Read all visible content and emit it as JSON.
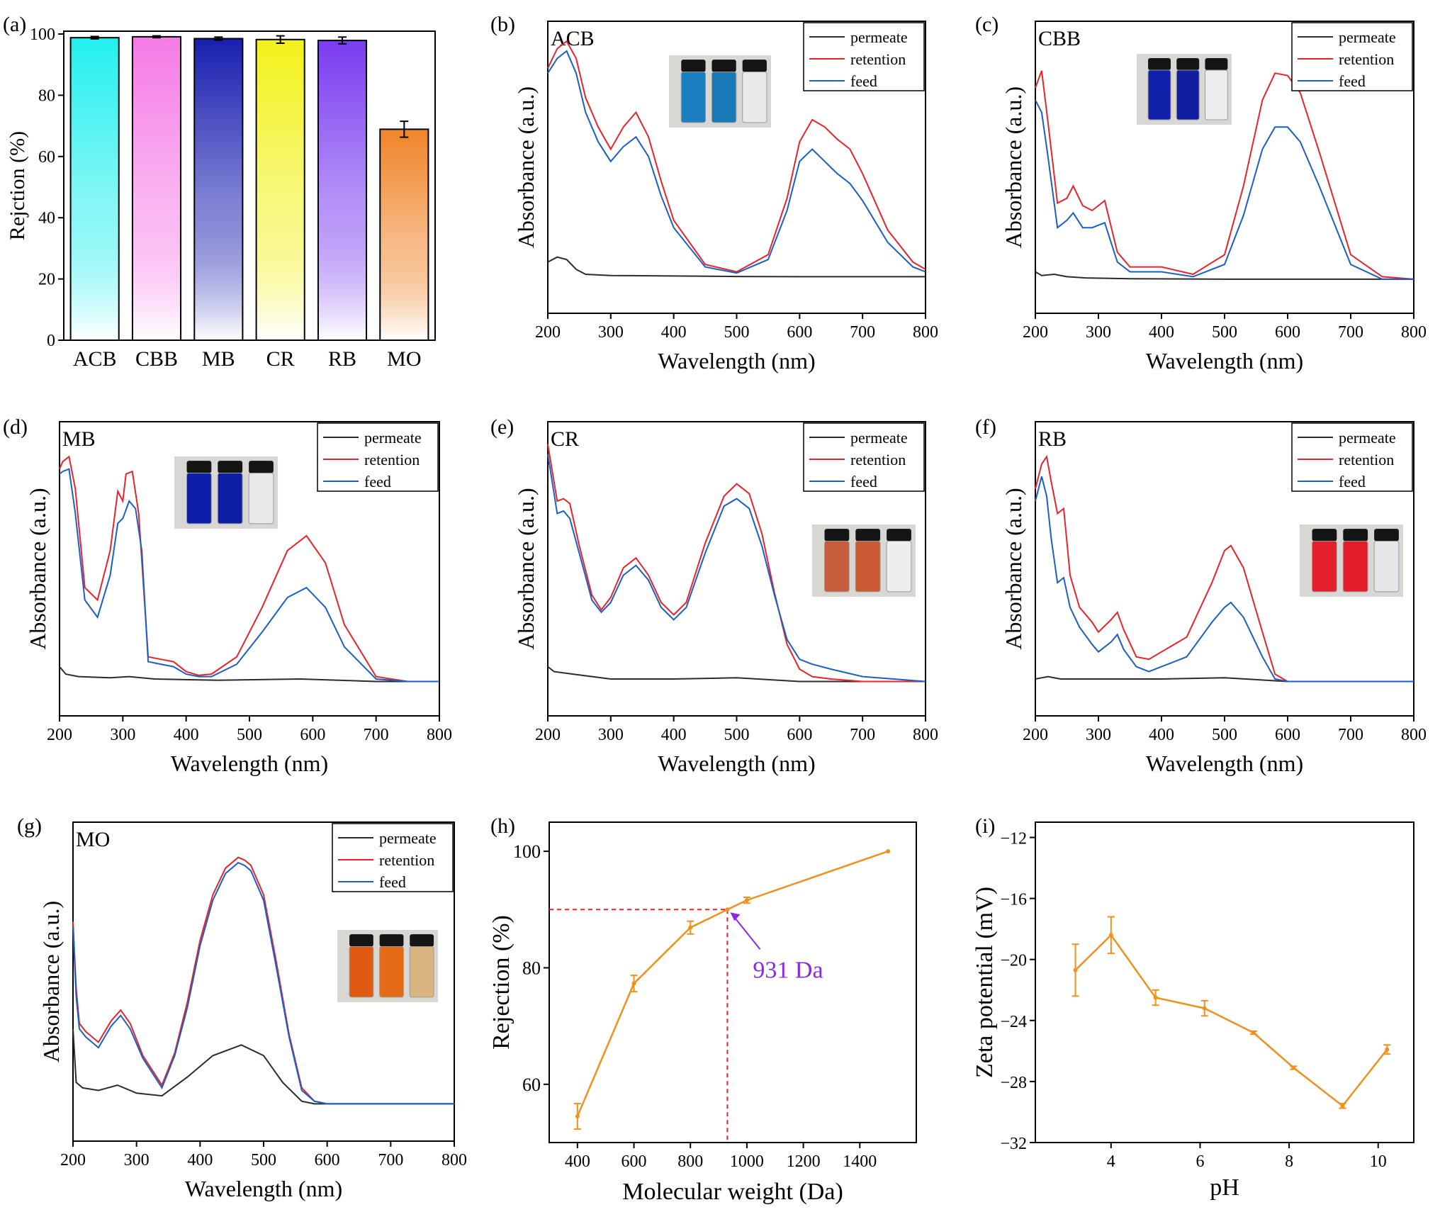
{
  "colors": {
    "permeate": "#2b2b2b",
    "retention": "#e8232b",
    "feed": "#1a5fc4",
    "orange": "#f0901e",
    "guide": "#e8232b",
    "annotation": "#8a2be2",
    "bars": [
      "#22f0ee",
      "#f57ae6",
      "#1a1fb0",
      "#f2f21a",
      "#7a3cf0",
      "#f08428"
    ]
  },
  "chart_data": [
    {
      "panel": "(a)",
      "type": "bar",
      "categories": [
        "ACB",
        "CBB",
        "MB",
        "CR",
        "RB",
        "MO"
      ],
      "values": [
        98.8,
        99.1,
        98.5,
        98.2,
        97.9,
        68.9
      ],
      "errors": [
        0.4,
        0.3,
        0.5,
        1.2,
        1.1,
        2.6
      ],
      "ylabel": "Rejction (%)",
      "xlabel": "",
      "ylim": [
        0,
        100
      ],
      "yticks": [
        0,
        20,
        40,
        60,
        80,
        100
      ]
    },
    {
      "panel": "(b)",
      "type": "line",
      "label": "ACB",
      "xlabel": "Wavelength  (nm)",
      "ylabel": "Absorbance  (a.u.)",
      "xlim": [
        200,
        800
      ],
      "ylim": [
        0,
        1
      ],
      "xticks": [
        200,
        300,
        400,
        500,
        600,
        700,
        800
      ],
      "legend": "top-right",
      "series": [
        {
          "name": "permeate",
          "x": [
            200,
            215,
            230,
            245,
            260,
            300,
            400,
            500,
            600,
            700,
            800
          ],
          "values": [
            0.09,
            0.11,
            0.1,
            0.06,
            0.04,
            0.035,
            0.033,
            0.031,
            0.03,
            0.03,
            0.03
          ]
        },
        {
          "name": "retention",
          "x": [
            200,
            215,
            230,
            245,
            260,
            280,
            300,
            320,
            340,
            360,
            380,
            400,
            450,
            500,
            550,
            580,
            600,
            620,
            640,
            660,
            680,
            700,
            740,
            780,
            800
          ],
          "values": [
            0.88,
            0.96,
            0.99,
            0.92,
            0.76,
            0.64,
            0.55,
            0.64,
            0.7,
            0.6,
            0.42,
            0.26,
            0.08,
            0.05,
            0.12,
            0.35,
            0.58,
            0.67,
            0.64,
            0.59,
            0.55,
            0.45,
            0.22,
            0.09,
            0.06
          ]
        },
        {
          "name": "feed",
          "x": [
            200,
            215,
            230,
            245,
            260,
            280,
            300,
            320,
            340,
            360,
            380,
            400,
            450,
            500,
            550,
            580,
            600,
            620,
            640,
            660,
            680,
            700,
            740,
            780,
            800
          ],
          "values": [
            0.86,
            0.92,
            0.95,
            0.86,
            0.7,
            0.58,
            0.5,
            0.56,
            0.6,
            0.52,
            0.36,
            0.23,
            0.07,
            0.045,
            0.1,
            0.3,
            0.5,
            0.55,
            0.5,
            0.45,
            0.41,
            0.34,
            0.17,
            0.07,
            0.05
          ]
        }
      ]
    },
    {
      "panel": "(c)",
      "type": "line",
      "label": "CBB",
      "xlabel": "Wavelength  (nm)",
      "ylabel": "Absorbance  (a.u.)",
      "xlim": [
        200,
        800
      ],
      "ylim": [
        0,
        1
      ],
      "xticks": [
        200,
        300,
        400,
        500,
        600,
        700,
        800
      ],
      "legend": "top-right",
      "series": [
        {
          "name": "permeate",
          "x": [
            200,
            210,
            230,
            250,
            280,
            350,
            500,
            650,
            800
          ],
          "values": [
            0.05,
            0.035,
            0.04,
            0.03,
            0.025,
            0.022,
            0.02,
            0.02,
            0.02
          ]
        },
        {
          "name": "retention",
          "x": [
            200,
            210,
            220,
            235,
            250,
            260,
            275,
            290,
            310,
            330,
            350,
            400,
            450,
            500,
            530,
            560,
            580,
            600,
            620,
            650,
            700,
            750,
            800
          ],
          "values": [
            0.8,
            0.87,
            0.66,
            0.33,
            0.35,
            0.4,
            0.32,
            0.3,
            0.34,
            0.13,
            0.07,
            0.07,
            0.04,
            0.12,
            0.4,
            0.75,
            0.86,
            0.85,
            0.78,
            0.54,
            0.12,
            0.03,
            0.02
          ]
        },
        {
          "name": "feed",
          "x": [
            200,
            210,
            220,
            235,
            250,
            260,
            275,
            290,
            310,
            330,
            350,
            400,
            450,
            500,
            530,
            560,
            580,
            600,
            620,
            650,
            700,
            750,
            800
          ],
          "values": [
            0.75,
            0.7,
            0.52,
            0.23,
            0.26,
            0.29,
            0.23,
            0.23,
            0.25,
            0.09,
            0.05,
            0.05,
            0.03,
            0.08,
            0.28,
            0.55,
            0.64,
            0.64,
            0.58,
            0.4,
            0.08,
            0.02,
            0.02
          ]
        }
      ]
    },
    {
      "panel": "(d)",
      "type": "line",
      "label": "MB",
      "xlabel": "Wavelength  (nm)",
      "ylabel": "Absorbance  (a.u.)",
      "xlim": [
        200,
        800
      ],
      "ylim": [
        0,
        1
      ],
      "xticks": [
        200,
        300,
        400,
        500,
        600,
        700,
        800
      ],
      "legend": "top-right",
      "series": [
        {
          "name": "permeate",
          "x": [
            200,
            210,
            230,
            280,
            310,
            350,
            450,
            580,
            700,
            800
          ],
          "values": [
            0.08,
            0.05,
            0.04,
            0.035,
            0.04,
            0.03,
            0.025,
            0.03,
            0.02,
            0.02
          ]
        },
        {
          "name": "retention",
          "x": [
            200,
            205,
            215,
            225,
            240,
            260,
            280,
            292,
            300,
            305,
            315,
            325,
            340,
            360,
            380,
            400,
            420,
            440,
            480,
            520,
            560,
            590,
            620,
            650,
            700,
            750,
            800
          ],
          "values": [
            0.88,
            0.91,
            0.93,
            0.8,
            0.4,
            0.35,
            0.55,
            0.79,
            0.75,
            0.86,
            0.87,
            0.7,
            0.12,
            0.11,
            0.1,
            0.06,
            0.045,
            0.05,
            0.12,
            0.32,
            0.55,
            0.61,
            0.5,
            0.25,
            0.04,
            0.02,
            0.02
          ]
        },
        {
          "name": "feed",
          "x": [
            200,
            205,
            215,
            225,
            240,
            260,
            280,
            292,
            300,
            310,
            320,
            330,
            340,
            360,
            380,
            400,
            420,
            440,
            480,
            520,
            560,
            590,
            620,
            650,
            700,
            750,
            800
          ],
          "values": [
            0.86,
            0.87,
            0.88,
            0.7,
            0.35,
            0.28,
            0.45,
            0.66,
            0.68,
            0.75,
            0.72,
            0.55,
            0.1,
            0.09,
            0.08,
            0.05,
            0.04,
            0.04,
            0.09,
            0.22,
            0.36,
            0.4,
            0.32,
            0.16,
            0.03,
            0.02,
            0.02
          ]
        }
      ]
    },
    {
      "panel": "(e)",
      "type": "line",
      "label": "CR",
      "xlabel": "Wavelength  (nm)",
      "ylabel": "Absorbance  (a.u.)",
      "xlim": [
        200,
        800
      ],
      "ylim": [
        0,
        1
      ],
      "xticks": [
        200,
        300,
        400,
        500,
        600,
        700,
        800
      ],
      "legend": "top-right",
      "series": [
        {
          "name": "permeate",
          "x": [
            200,
            210,
            240,
            300,
            400,
            500,
            600,
            700,
            800
          ],
          "values": [
            0.08,
            0.06,
            0.05,
            0.03,
            0.03,
            0.035,
            0.02,
            0.02,
            0.02
          ]
        },
        {
          "name": "retention",
          "x": [
            200,
            215,
            225,
            235,
            250,
            270,
            285,
            300,
            320,
            340,
            360,
            380,
            400,
            420,
            450,
            480,
            500,
            520,
            540,
            560,
            580,
            600,
            620,
            650,
            700,
            800
          ],
          "values": [
            0.98,
            0.75,
            0.76,
            0.74,
            0.57,
            0.37,
            0.31,
            0.36,
            0.48,
            0.52,
            0.45,
            0.34,
            0.29,
            0.34,
            0.58,
            0.77,
            0.82,
            0.78,
            0.62,
            0.38,
            0.17,
            0.07,
            0.04,
            0.03,
            0.02,
            0.02
          ]
        },
        {
          "name": "feed",
          "x": [
            200,
            215,
            225,
            235,
            250,
            270,
            285,
            300,
            320,
            340,
            360,
            380,
            400,
            420,
            450,
            480,
            500,
            520,
            540,
            560,
            580,
            600,
            620,
            650,
            700,
            800
          ],
          "values": [
            0.94,
            0.7,
            0.71,
            0.68,
            0.54,
            0.35,
            0.3,
            0.34,
            0.45,
            0.49,
            0.43,
            0.32,
            0.27,
            0.32,
            0.54,
            0.73,
            0.76,
            0.72,
            0.57,
            0.37,
            0.19,
            0.11,
            0.09,
            0.07,
            0.04,
            0.02
          ]
        }
      ]
    },
    {
      "panel": "(f)",
      "type": "line",
      "label": "RB",
      "xlabel": "Wavelength  (nm)",
      "ylabel": "Absorbance  (a.u.)",
      "xlim": [
        200,
        800
      ],
      "ylim": [
        0,
        1
      ],
      "xticks": [
        200,
        300,
        400,
        500,
        600,
        700,
        800
      ],
      "legend": "top-right",
      "series": [
        {
          "name": "permeate",
          "x": [
            200,
            210,
            220,
            240,
            300,
            400,
            500,
            600,
            700,
            800
          ],
          "values": [
            0.03,
            0.035,
            0.04,
            0.03,
            0.03,
            0.03,
            0.035,
            0.02,
            0.02,
            0.02
          ]
        },
        {
          "name": "retention",
          "x": [
            200,
            210,
            218,
            225,
            235,
            245,
            255,
            270,
            290,
            300,
            320,
            330,
            340,
            360,
            380,
            400,
            440,
            480,
            500,
            510,
            530,
            560,
            580,
            600,
            650,
            800
          ],
          "values": [
            0.8,
            0.9,
            0.93,
            0.83,
            0.7,
            0.72,
            0.45,
            0.32,
            0.26,
            0.22,
            0.27,
            0.3,
            0.23,
            0.12,
            0.11,
            0.14,
            0.2,
            0.42,
            0.55,
            0.57,
            0.48,
            0.22,
            0.05,
            0.02,
            0.02,
            0.02
          ]
        },
        {
          "name": "feed",
          "x": [
            200,
            210,
            218,
            225,
            235,
            245,
            255,
            270,
            290,
            300,
            320,
            330,
            340,
            360,
            380,
            400,
            440,
            480,
            500,
            510,
            530,
            560,
            580,
            600,
            650,
            800
          ],
          "values": [
            0.75,
            0.85,
            0.77,
            0.6,
            0.42,
            0.44,
            0.32,
            0.24,
            0.17,
            0.14,
            0.18,
            0.21,
            0.15,
            0.08,
            0.06,
            0.08,
            0.12,
            0.26,
            0.32,
            0.34,
            0.28,
            0.12,
            0.03,
            0.02,
            0.02,
            0.02
          ]
        }
      ]
    },
    {
      "panel": "(g)",
      "type": "line",
      "label": "MO",
      "xlabel": "Wavelength  (nm)",
      "ylabel": "Absorbance  (a.u.)",
      "xlim": [
        200,
        800
      ],
      "ylim": [
        0,
        1
      ],
      "xticks": [
        200,
        300,
        400,
        500,
        600,
        700,
        800
      ],
      "legend": "top-right",
      "series": [
        {
          "name": "permeate",
          "x": [
            200,
            205,
            215,
            240,
            270,
            300,
            340,
            380,
            420,
            465,
            500,
            530,
            560,
            580,
            600,
            800
          ],
          "values": [
            0.3,
            0.1,
            0.08,
            0.07,
            0.09,
            0.06,
            0.05,
            0.12,
            0.2,
            0.24,
            0.2,
            0.1,
            0.03,
            0.02,
            0.02,
            0.02
          ]
        },
        {
          "name": "retention",
          "x": [
            200,
            205,
            210,
            220,
            240,
            260,
            275,
            290,
            310,
            340,
            360,
            380,
            400,
            420,
            440,
            460,
            470,
            480,
            500,
            520,
            540,
            560,
            580,
            600,
            800
          ],
          "values": [
            0.7,
            0.45,
            0.32,
            0.29,
            0.25,
            0.33,
            0.37,
            0.32,
            0.2,
            0.09,
            0.21,
            0.4,
            0.63,
            0.8,
            0.9,
            0.94,
            0.93,
            0.91,
            0.8,
            0.55,
            0.28,
            0.08,
            0.03,
            0.02,
            0.02
          ]
        },
        {
          "name": "feed",
          "x": [
            200,
            205,
            210,
            220,
            240,
            260,
            275,
            290,
            310,
            340,
            360,
            380,
            400,
            420,
            440,
            460,
            470,
            480,
            500,
            520,
            540,
            560,
            580,
            600,
            800
          ],
          "values": [
            0.68,
            0.42,
            0.3,
            0.27,
            0.23,
            0.31,
            0.35,
            0.3,
            0.19,
            0.08,
            0.2,
            0.38,
            0.61,
            0.78,
            0.88,
            0.92,
            0.91,
            0.89,
            0.78,
            0.53,
            0.27,
            0.07,
            0.03,
            0.02,
            0.02
          ]
        }
      ]
    },
    {
      "panel": "(h)",
      "type": "line",
      "xlabel": "Molecular weight (Da)",
      "ylabel": "Rejection (%)",
      "xlim": [
        300,
        1600
      ],
      "ylim": [
        50,
        105
      ],
      "xticks": [
        400,
        600,
        800,
        1000,
        1200,
        1400
      ],
      "yticks": [
        60,
        80,
        100
      ],
      "x": [
        400,
        600,
        800,
        931,
        1000,
        1500
      ],
      "values": [
        54.5,
        77.3,
        86.9,
        90,
        91.6,
        100
      ],
      "errors": [
        2.2,
        1.4,
        1.1,
        0,
        0.5,
        0
      ],
      "annotation": "931 Da"
    },
    {
      "panel": "(i)",
      "type": "line",
      "xlabel": "pH",
      "ylabel": "Zeta potential (mV)",
      "xlim": [
        2.3,
        10.8
      ],
      "ylim": [
        -32,
        -11
      ],
      "xticks": [
        4,
        6,
        8,
        10
      ],
      "yticks": [
        -12,
        -16,
        -20,
        -24,
        -28,
        -32
      ],
      "x": [
        3.2,
        4.0,
        5.0,
        6.1,
        7.2,
        8.1,
        9.2,
        10.2
      ],
      "values": [
        -20.7,
        -18.4,
        -22.5,
        -23.2,
        -24.8,
        -27.1,
        -29.6,
        -25.9
      ],
      "errors": [
        1.7,
        1.2,
        0.5,
        0.5,
        0.1,
        0.1,
        0.15,
        0.3
      ]
    }
  ],
  "panel_labels": [
    "(a)",
    "(b)",
    "(c)",
    "(d)",
    "(e)",
    "(f)",
    "(g)",
    "(h)",
    "(i)"
  ]
}
